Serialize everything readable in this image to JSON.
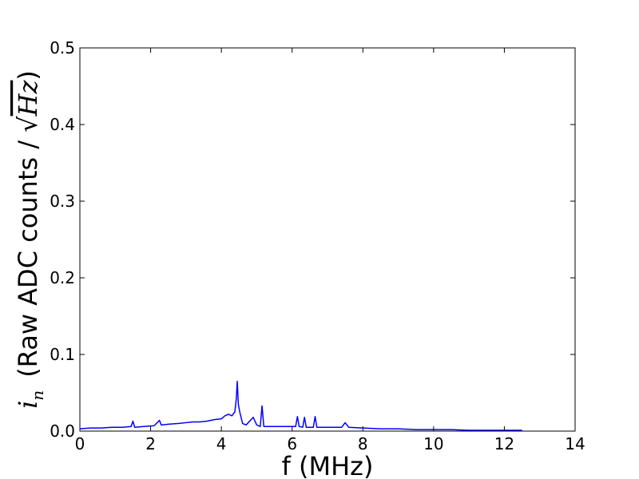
{
  "chart_data": {
    "type": "line",
    "title": "",
    "xlabel": "f (MHz)",
    "ylabel": {
      "symbol": "i",
      "subscript": "n",
      "text": "(Raw ADC counts / ",
      "sqrt_arg": "Hz",
      "close": ")"
    },
    "xlim": [
      0,
      14
    ],
    "ylim": [
      0,
      0.5
    ],
    "xticks": [
      0,
      2,
      4,
      6,
      8,
      10,
      12,
      14
    ],
    "xtick_labels": [
      "0",
      "2",
      "4",
      "6",
      "8",
      "10",
      "12",
      "14"
    ],
    "yticks": [
      0.0,
      0.1,
      0.2,
      0.3,
      0.4,
      0.5
    ],
    "ytick_labels": [
      "0.0",
      "0.1",
      "0.2",
      "0.3",
      "0.4",
      "0.5"
    ],
    "grid": false,
    "line_color": "#0000ff",
    "series": [
      {
        "x": [
          0.0,
          0.3,
          0.6,
          0.9,
          1.2,
          1.45,
          1.5,
          1.55,
          1.8,
          2.1,
          2.25,
          2.3,
          2.5,
          2.8,
          3.0,
          3.2,
          3.4,
          3.6,
          3.8,
          4.0,
          4.1,
          4.2,
          4.3,
          4.38,
          4.42,
          4.45,
          4.48,
          4.52,
          4.6,
          4.7,
          4.9,
          5.0,
          5.1,
          5.15,
          5.2,
          5.4,
          5.8,
          6.1,
          6.15,
          6.2,
          6.3,
          6.35,
          6.4,
          6.5,
          6.6,
          6.65,
          6.7,
          7.0,
          7.4,
          7.5,
          7.6,
          8.0,
          8.5,
          9.0,
          9.5,
          10.0,
          10.5,
          11.0,
          11.5,
          12.0,
          12.5
        ],
        "y": [
          0.003,
          0.004,
          0.004,
          0.005,
          0.005,
          0.006,
          0.013,
          0.005,
          0.006,
          0.007,
          0.014,
          0.008,
          0.009,
          0.01,
          0.011,
          0.012,
          0.012,
          0.013,
          0.015,
          0.016,
          0.02,
          0.022,
          0.02,
          0.025,
          0.041,
          0.065,
          0.035,
          0.025,
          0.01,
          0.008,
          0.018,
          0.008,
          0.006,
          0.033,
          0.006,
          0.006,
          0.006,
          0.006,
          0.019,
          0.006,
          0.005,
          0.018,
          0.005,
          0.005,
          0.005,
          0.019,
          0.005,
          0.005,
          0.005,
          0.011,
          0.005,
          0.004,
          0.003,
          0.003,
          0.002,
          0.002,
          0.002,
          0.001,
          0.001,
          0.001,
          0.001
        ]
      }
    ]
  }
}
